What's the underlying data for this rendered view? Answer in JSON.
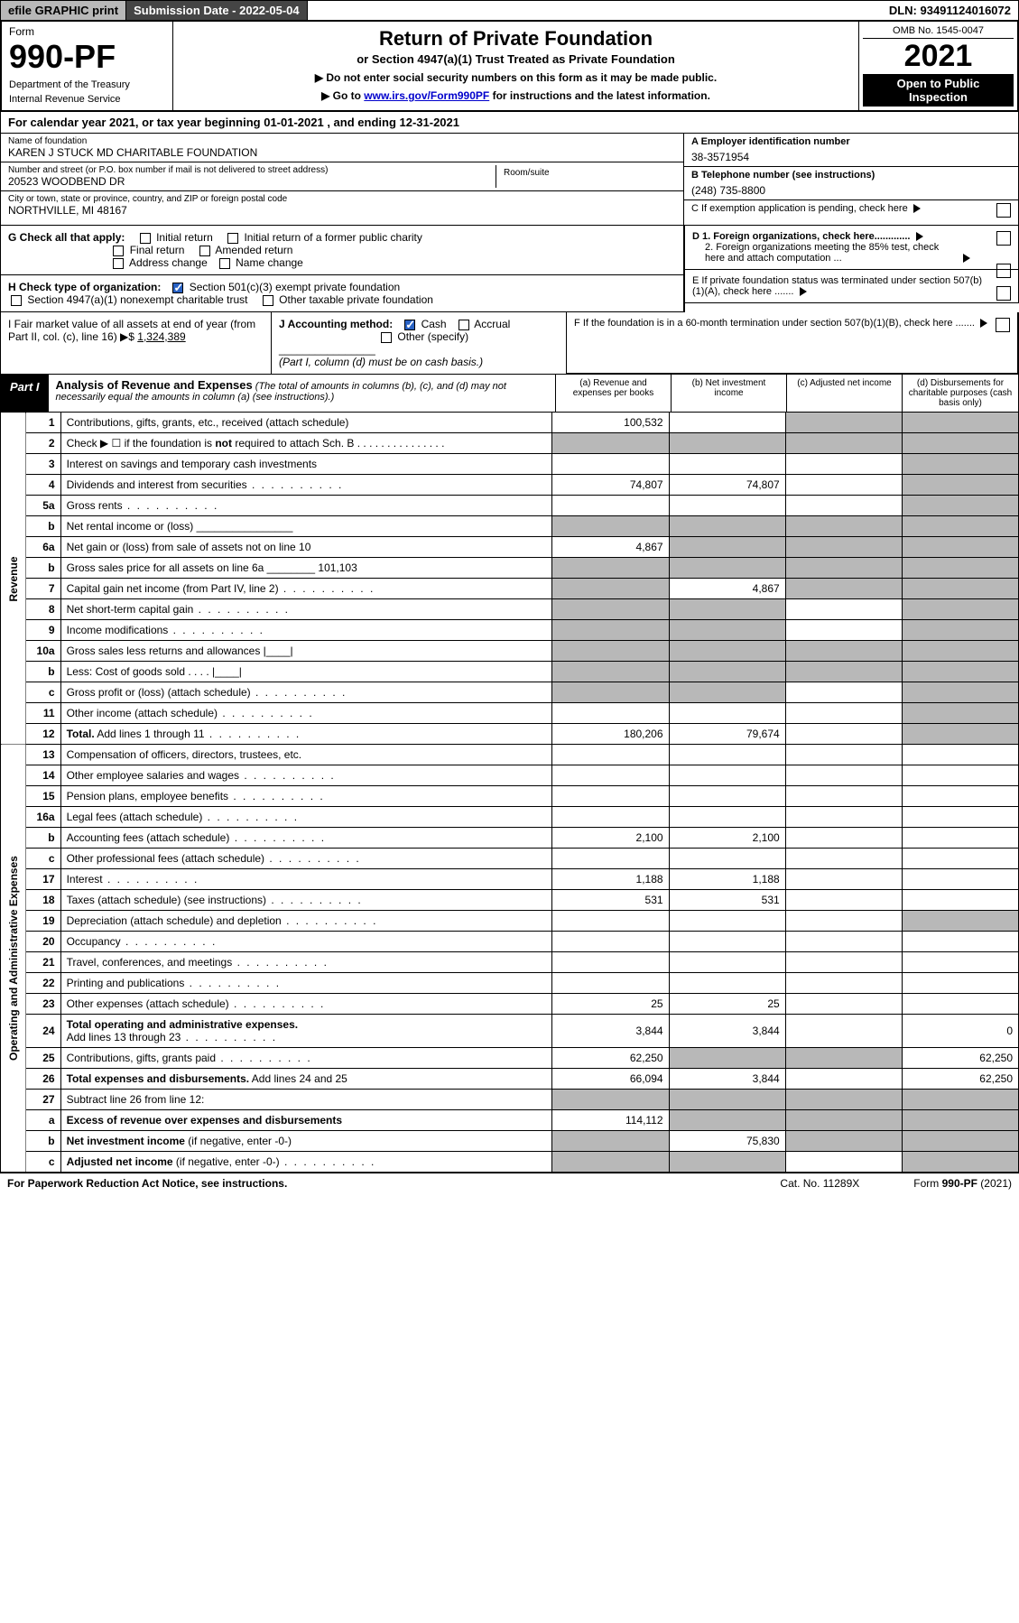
{
  "topbar": {
    "efile": "efile GRAPHIC print",
    "subdate_lbl": "Submission Date - ",
    "subdate": "2022-05-04",
    "dln_lbl": "DLN: ",
    "dln": "93491124016072"
  },
  "header": {
    "form_word": "Form",
    "form_num": "990-PF",
    "dept": "Department of the Treasury",
    "irs": "Internal Revenue Service",
    "title": "Return of Private Foundation",
    "subtitle": "or Section 4947(a)(1) Trust Treated as Private Foundation",
    "note1": "▶ Do not enter social security numbers on this form as it may be made public.",
    "note2_pre": "▶ Go to ",
    "note2_link": "www.irs.gov/Form990PF",
    "note2_post": " for instructions and the latest information.",
    "omb": "OMB No. 1545-0047",
    "year": "2021",
    "open1": "Open to Public",
    "open2": "Inspection"
  },
  "cal_year": "For calendar year 2021, or tax year beginning 01-01-2021          , and ending 12-31-2021",
  "info": {
    "name_lbl": "Name of foundation",
    "name": "KAREN J STUCK MD CHARITABLE FOUNDATION",
    "addr_lbl": "Number and street (or P.O. box number if mail is not delivered to street address)",
    "addr": "20523 WOODBEND DR",
    "room_lbl": "Room/suite",
    "city_lbl": "City or town, state or province, country, and ZIP or foreign postal code",
    "city": "NORTHVILLE, MI  48167",
    "ein_lbl": "A Employer identification number",
    "ein": "38-3571954",
    "tel_lbl": "B Telephone number (see instructions)",
    "tel": "(248) 735-8800",
    "c": "C If exemption application is pending, check here",
    "d1": "D 1. Foreign organizations, check here.............",
    "d2": "2. Foreign organizations meeting the 85% test, check here and attach computation ...",
    "e": "E  If private foundation status was terminated under section 507(b)(1)(A), check here .......",
    "f": "F  If the foundation is in a 60-month termination under section 507(b)(1)(B), check here .......",
    "g_lbl": "G Check all that apply:",
    "g_opts": [
      "Initial return",
      "Initial return of a former public charity",
      "Final return",
      "Amended return",
      "Address change",
      "Name change"
    ],
    "h_lbl": "H Check type of organization:",
    "h_opt1": "Section 501(c)(3) exempt private foundation",
    "h_opt2": "Section 4947(a)(1) nonexempt charitable trust",
    "h_opt3": "Other taxable private foundation",
    "i_lbl": "I Fair market value of all assets at end of year (from Part II, col. (c), line 16) ▶$ ",
    "i_val": "1,324,389",
    "j_lbl": "J Accounting method:",
    "j_cash": "Cash",
    "j_accrual": "Accrual",
    "j_other": "Other (specify)",
    "j_note": "(Part I, column (d) must be on cash basis.)"
  },
  "part1": {
    "lbl": "Part I",
    "title": "Analysis of Revenue and Expenses",
    "note": " (The total of amounts in columns (b), (c), and (d) may not necessarily equal the amounts in column (a) (see instructions).)",
    "col_a": "(a)   Revenue and expenses per books",
    "col_b": "(b)   Net investment income",
    "col_c": "(c)   Adjusted net income",
    "col_d": "(d)   Disbursements for charitable purposes (cash basis only)"
  },
  "sides": {
    "rev": "Revenue",
    "exp": "Operating and Administrative Expenses"
  },
  "rows": [
    {
      "n": "1",
      "d": "g",
      "a": "100,532",
      "b": "",
      "c": "g"
    },
    {
      "n": "2",
      "d": "g",
      "dots": 1,
      "a": "g",
      "b": "g",
      "c": "g"
    },
    {
      "n": "3",
      "d": "g",
      "a": "",
      "b": "",
      "c": ""
    },
    {
      "n": "4",
      "d": "g",
      "dots": 1,
      "a": "74,807",
      "b": "74,807",
      "c": ""
    },
    {
      "n": "5a",
      "d": "g",
      "dots": 1,
      "a": "",
      "b": "",
      "c": ""
    },
    {
      "n": "b",
      "d": "g",
      "a": "g",
      "b": "g",
      "c": "g"
    },
    {
      "n": "6a",
      "d": "g",
      "a": "4,867",
      "b": "g",
      "c": "g"
    },
    {
      "n": "b",
      "d": "g",
      "a": "g",
      "b": "g",
      "c": "g"
    },
    {
      "n": "7",
      "d": "g",
      "dots": 1,
      "a": "g",
      "b": "4,867",
      "c": "g"
    },
    {
      "n": "8",
      "d": "g",
      "dots": 1,
      "a": "g",
      "b": "g",
      "c": ""
    },
    {
      "n": "9",
      "d": "g",
      "dots": 1,
      "a": "g",
      "b": "g",
      "c": ""
    },
    {
      "n": "10a",
      "d": "g",
      "a": "g",
      "b": "g",
      "c": "g"
    },
    {
      "n": "b",
      "d": "g",
      "a": "g",
      "b": "g",
      "c": "g"
    },
    {
      "n": "c",
      "d": "g",
      "dots": 1,
      "a": "g",
      "b": "g",
      "c": ""
    },
    {
      "n": "11",
      "d": "g",
      "dots": 1,
      "a": "",
      "b": "",
      "c": ""
    },
    {
      "n": "12",
      "d": "g",
      "dots": 1,
      "bold": 1,
      "a": "180,206",
      "b": "79,674",
      "c": ""
    },
    {
      "n": "13",
      "d": "",
      "a": "",
      "b": "",
      "c": ""
    },
    {
      "n": "14",
      "d": "",
      "dots": 1,
      "a": "",
      "b": "",
      "c": ""
    },
    {
      "n": "15",
      "d": "",
      "dots": 1,
      "a": "",
      "b": "",
      "c": ""
    },
    {
      "n": "16a",
      "d": "",
      "dots": 1,
      "a": "",
      "b": "",
      "c": ""
    },
    {
      "n": "b",
      "d": "",
      "dots": 1,
      "a": "2,100",
      "b": "2,100",
      "c": ""
    },
    {
      "n": "c",
      "d": "",
      "dots": 1,
      "a": "",
      "b": "",
      "c": ""
    },
    {
      "n": "17",
      "d": "",
      "dots": 1,
      "a": "1,188",
      "b": "1,188",
      "c": ""
    },
    {
      "n": "18",
      "d": "",
      "dots": 1,
      "a": "531",
      "b": "531",
      "c": ""
    },
    {
      "n": "19",
      "d": "g",
      "dots": 1,
      "a": "",
      "b": "",
      "c": ""
    },
    {
      "n": "20",
      "d": "",
      "dots": 1,
      "a": "",
      "b": "",
      "c": ""
    },
    {
      "n": "21",
      "d": "",
      "dots": 1,
      "a": "",
      "b": "",
      "c": ""
    },
    {
      "n": "22",
      "d": "",
      "dots": 1,
      "a": "",
      "b": "",
      "c": ""
    },
    {
      "n": "23",
      "d": "",
      "dots": 1,
      "a": "25",
      "b": "25",
      "c": ""
    },
    {
      "n": "24",
      "d": "0",
      "dots": 1,
      "bold": 1,
      "a": "3,844",
      "b": "3,844",
      "c": ""
    },
    {
      "n": "25",
      "d": "62,250",
      "dots": 1,
      "a": "62,250",
      "b": "g",
      "c": "g"
    },
    {
      "n": "26",
      "d": "62,250",
      "bold": 1,
      "a": "66,094",
      "b": "3,844",
      "c": ""
    },
    {
      "n": "27",
      "d": "g",
      "a": "g",
      "b": "g",
      "c": "g"
    },
    {
      "n": "a",
      "d": "g",
      "bold": 1,
      "a": "114,112",
      "b": "g",
      "c": "g"
    },
    {
      "n": "b",
      "d": "g",
      "bold": 1,
      "a": "g",
      "b": "75,830",
      "c": "g"
    },
    {
      "n": "c",
      "d": "g",
      "dots": 1,
      "bold": 1,
      "a": "g",
      "b": "g",
      "c": ""
    }
  ],
  "footer": {
    "left": "For Paperwork Reduction Act Notice, see instructions.",
    "mid": "Cat. No. 11289X",
    "right": "Form 990-PF (2021)"
  }
}
